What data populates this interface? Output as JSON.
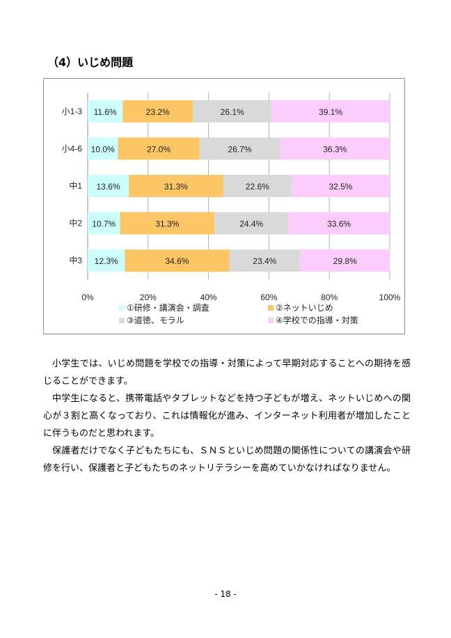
{
  "heading": "（4）いじめ問題",
  "chart_data": {
    "type": "bar",
    "stacked": true,
    "orientation": "horizontal",
    "categories": [
      "小1-3",
      "小4-6",
      "中1",
      "中2",
      "中3"
    ],
    "series": [
      {
        "name": "①研修・講演会・調査",
        "color": "#ccfcfc",
        "values": [
          11.6,
          10.0,
          13.6,
          10.7,
          12.3
        ]
      },
      {
        "name": "②ネットいじめ",
        "color": "#fcc666",
        "values": [
          23.2,
          27.0,
          31.3,
          31.3,
          34.6
        ]
      },
      {
        "name": "③道徳、モラル",
        "color": "#d9d9d9",
        "values": [
          26.1,
          26.7,
          22.6,
          24.4,
          23.4
        ]
      },
      {
        "name": "④学校での指導・対策",
        "color": "#fccdfc",
        "values": [
          39.1,
          36.3,
          32.5,
          33.6,
          29.8
        ]
      }
    ],
    "value_suffix": "%",
    "xlim": [
      0,
      100
    ],
    "xticks": [
      "0%",
      "20%",
      "40%",
      "60%",
      "80%",
      "100%"
    ],
    "grid": true,
    "legend_position": "bottom"
  },
  "paragraphs": [
    "小学生では、いじめ問題を学校での指導・対策によって早期対応することへの期待を感じることができます。",
    "中学生になると、携帯電話やタブレットなどを持つ子どもが増え、ネットいじめへの関心が３割と高くなっており、これは情報化が進み、インターネット利用者が増加したことに伴うものだと思われます。",
    "保護者だけでなく子どもたちにも、ＳＮＳといじめ問題の関係性についての講演会や研修を行い、保護者と子どもたちのネットリテラシーを高めていかなければなりません。"
  ],
  "page_number": "- 18 -"
}
